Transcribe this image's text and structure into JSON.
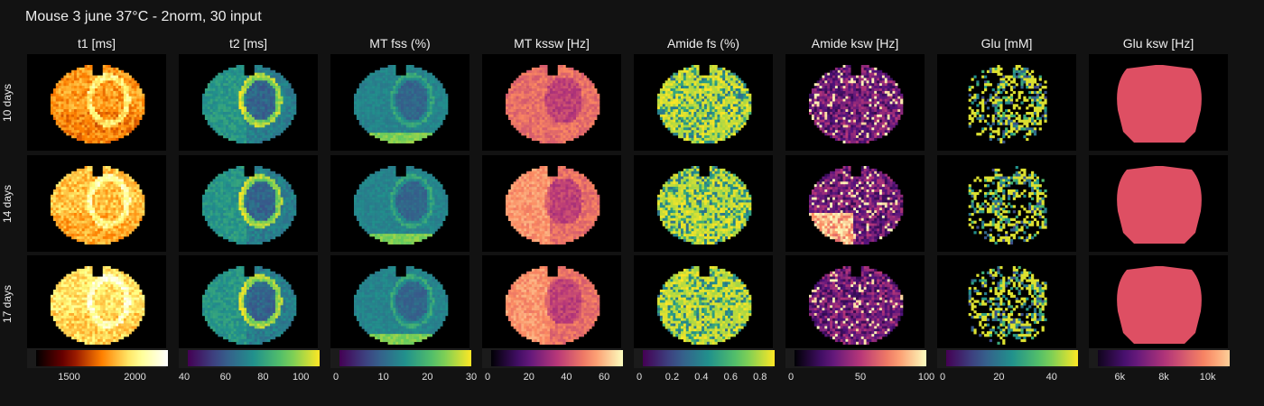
{
  "title": "Mouse 3 june 37°C - 2norm, 30 input",
  "rows": [
    "10 days",
    "14 days",
    "17 days"
  ],
  "columns": [
    {
      "label": "t1 [ms]",
      "cmap": "afmhot",
      "ticks": [
        "1500",
        "2000"
      ],
      "tick_values": [
        1500,
        2000
      ],
      "range": [
        1250,
        2250
      ]
    },
    {
      "label": "t2 [ms]",
      "cmap": "viridis",
      "ticks": [
        "40",
        "60",
        "80",
        "100"
      ],
      "tick_values": [
        40,
        60,
        80,
        100
      ],
      "range": [
        40,
        110
      ]
    },
    {
      "label": "MT fss (%)",
      "cmap": "viridis",
      "ticks": [
        "0",
        "10",
        "20",
        "30"
      ],
      "tick_values": [
        0,
        10,
        20,
        30
      ],
      "range": [
        0,
        30
      ]
    },
    {
      "label": "MT kssw [Hz]",
      "cmap": "magma",
      "ticks": [
        "0",
        "20",
        "40",
        "60"
      ],
      "tick_values": [
        0,
        20,
        40,
        60
      ],
      "range": [
        0,
        70
      ]
    },
    {
      "label": "Amide fs (%)",
      "cmap": "viridis",
      "ticks": [
        "0",
        "0.2",
        "0.4",
        "0.6",
        "0.8"
      ],
      "tick_values": [
        0,
        0.2,
        0.4,
        0.6,
        0.8
      ],
      "range": [
        0,
        0.9
      ]
    },
    {
      "label": "Amide ksw [Hz]",
      "cmap": "magma",
      "ticks": [
        "0",
        "50",
        "100"
      ],
      "tick_values": [
        0,
        50,
        100
      ],
      "range": [
        0,
        100
      ]
    },
    {
      "label": "Glu [mM]",
      "cmap": "viridis",
      "ticks": [
        "0",
        "20",
        "40"
      ],
      "tick_values": [
        0,
        20,
        40
      ],
      "range": [
        0,
        50
      ]
    },
    {
      "label": "Glu ksw [Hz]",
      "cmap": "magma",
      "ticks": [
        "6k",
        "8k",
        "10k"
      ],
      "tick_values": [
        6000,
        8000,
        10000
      ],
      "range": [
        5000,
        11000
      ]
    }
  ],
  "glu_ksw_color": "#de4f63",
  "background": "#121212"
}
